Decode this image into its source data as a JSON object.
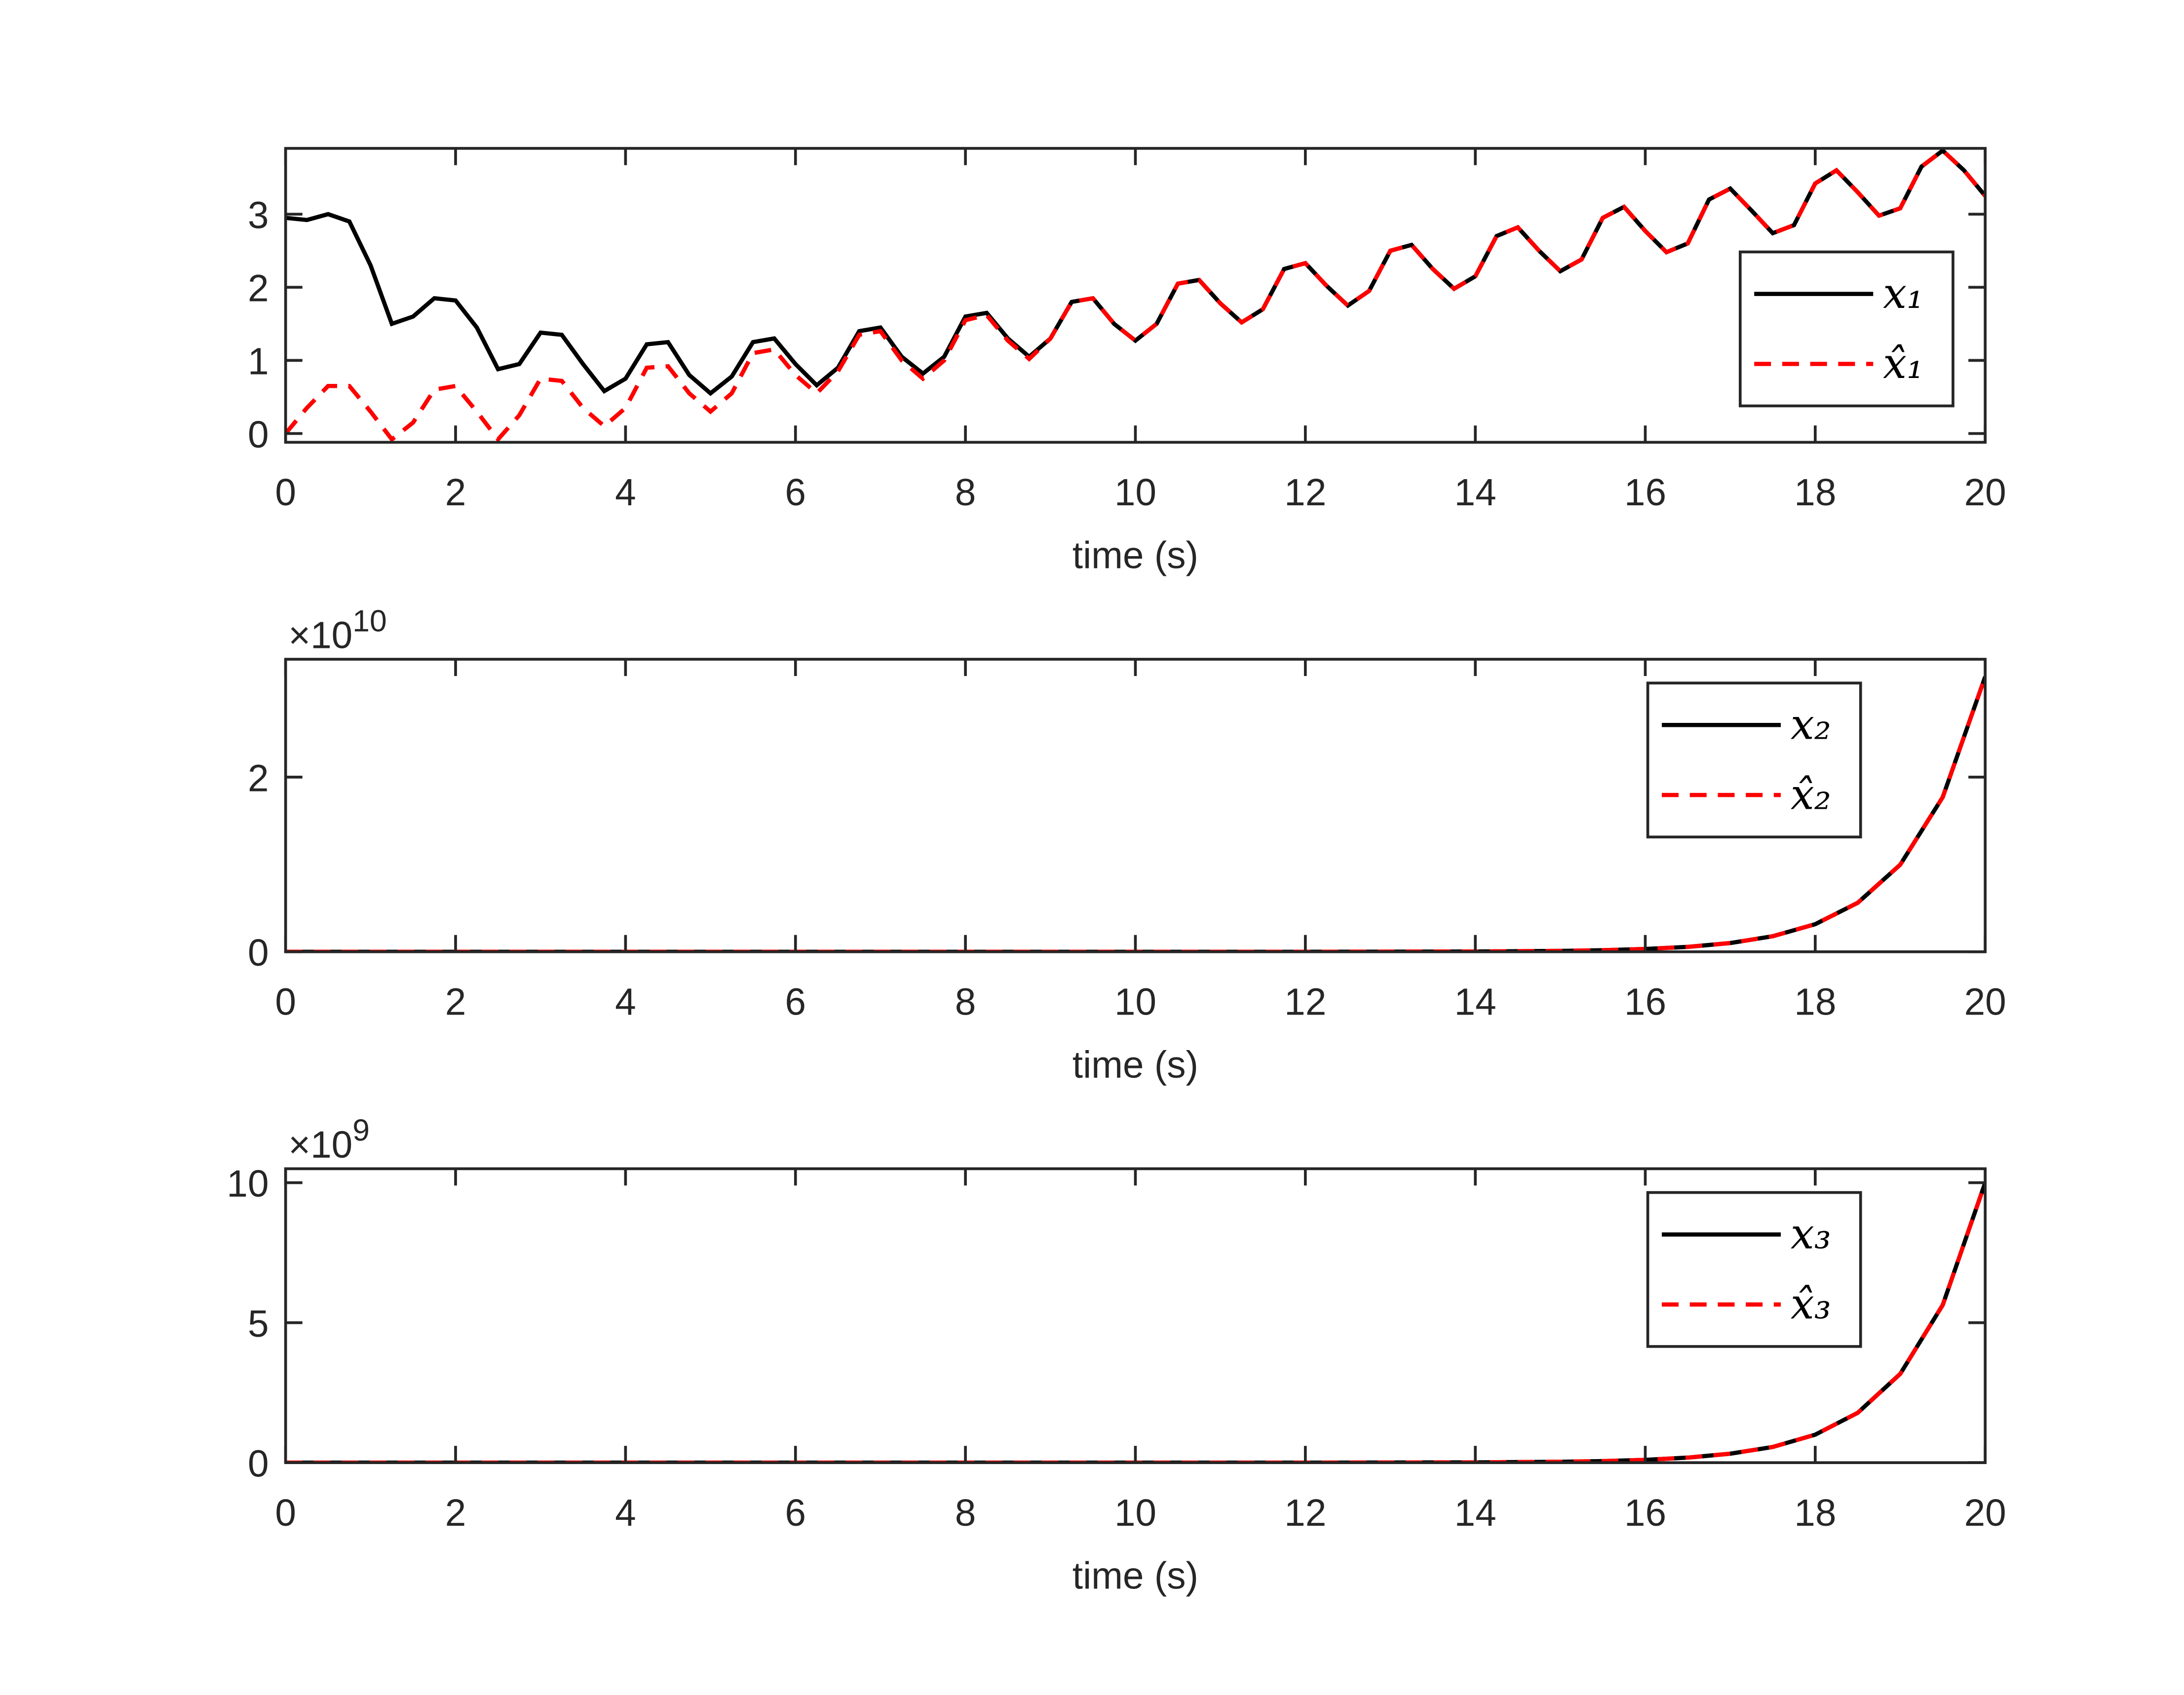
{
  "chart_data": [
    {
      "type": "line",
      "x_label": "time (s)",
      "xlim": [
        0,
        20
      ],
      "xticks": [
        0,
        2,
        4,
        6,
        8,
        10,
        12,
        14,
        16,
        18,
        20
      ],
      "ylim": [
        -0.12,
        3.9
      ],
      "yticks": [
        0,
        1,
        2,
        3
      ],
      "legend_loc": "southeast",
      "x": [
        0,
        0.25,
        0.5,
        0.75,
        1,
        1.25,
        1.5,
        1.75,
        2,
        2.25,
        2.5,
        2.75,
        3,
        3.25,
        3.5,
        3.75,
        4,
        4.25,
        4.5,
        4.75,
        5,
        5.25,
        5.5,
        5.75,
        6,
        6.25,
        6.5,
        6.75,
        7,
        7.25,
        7.5,
        7.75,
        8,
        8.25,
        8.5,
        8.75,
        9,
        9.25,
        9.5,
        9.75,
        10,
        10.25,
        10.5,
        10.75,
        11,
        11.25,
        11.5,
        11.75,
        12,
        12.25,
        12.5,
        12.75,
        13,
        13.25,
        13.5,
        13.75,
        14,
        14.25,
        14.5,
        14.75,
        15,
        15.25,
        15.5,
        15.75,
        16,
        16.25,
        16.5,
        16.75,
        17,
        17.25,
        17.5,
        17.75,
        18,
        18.25,
        18.5,
        18.75,
        19,
        19.25,
        19.5,
        19.75,
        20
      ],
      "series": [
        {
          "name": "x₁",
          "color": "#000000",
          "line_style": "solid",
          "values": [
            2.95,
            2.92,
            3.0,
            2.9,
            2.3,
            1.5,
            1.6,
            1.85,
            1.82,
            1.45,
            0.88,
            0.95,
            1.38,
            1.35,
            0.95,
            0.58,
            0.75,
            1.22,
            1.25,
            0.8,
            0.55,
            0.78,
            1.25,
            1.3,
            0.95,
            0.66,
            0.9,
            1.4,
            1.45,
            1.05,
            0.82,
            1.05,
            1.6,
            1.65,
            1.3,
            1.05,
            1.3,
            1.8,
            1.85,
            1.5,
            1.27,
            1.5,
            2.05,
            2.1,
            1.78,
            1.52,
            1.7,
            2.25,
            2.33,
            2.02,
            1.75,
            1.95,
            2.5,
            2.58,
            2.25,
            1.98,
            2.15,
            2.7,
            2.82,
            2.5,
            2.22,
            2.38,
            2.95,
            3.1,
            2.77,
            2.48,
            2.6,
            3.2,
            3.35,
            3.05,
            2.74,
            2.85,
            3.42,
            3.6,
            3.3,
            2.98,
            3.08,
            3.65,
            3.87,
            3.6,
            3.25
          ]
        },
        {
          "name": "x̂₁",
          "color": "#ff0000",
          "line_style": "dashed",
          "values": [
            0,
            0.35,
            0.65,
            0.65,
            0.3,
            -0.08,
            0.15,
            0.6,
            0.65,
            0.3,
            -0.08,
            0.25,
            0.75,
            0.72,
            0.35,
            0.1,
            0.35,
            0.9,
            0.92,
            0.55,
            0.3,
            0.55,
            1.1,
            1.15,
            0.8,
            0.55,
            0.85,
            1.35,
            1.4,
            1.0,
            0.75,
            1.0,
            1.55,
            1.62,
            1.27,
            1.02,
            1.3,
            1.8,
            1.85,
            1.5,
            1.27,
            1.5,
            2.05,
            2.1,
            1.78,
            1.52,
            1.7,
            2.25,
            2.33,
            2.02,
            1.75,
            1.95,
            2.5,
            2.58,
            2.25,
            1.98,
            2.15,
            2.7,
            2.82,
            2.5,
            2.22,
            2.38,
            2.95,
            3.1,
            2.77,
            2.48,
            2.6,
            3.2,
            3.35,
            3.05,
            2.74,
            2.85,
            3.42,
            3.6,
            3.3,
            2.98,
            3.08,
            3.65,
            3.87,
            3.6,
            3.25
          ]
        }
      ]
    },
    {
      "type": "line",
      "x_label": "time (s)",
      "xlim": [
        0,
        20
      ],
      "xticks": [
        0,
        2,
        4,
        6,
        8,
        10,
        12,
        14,
        16,
        18,
        20
      ],
      "ylim": [
        0,
        33500000000
      ],
      "yticks": [
        0,
        {
          "value": 20000000000,
          "label": "2"
        }
      ],
      "legend_loc": "northeast",
      "y_multiplier": {
        "base": "×10",
        "exponent": "10"
      },
      "x": [
        0,
        2,
        4,
        6,
        8,
        10,
        12,
        14,
        15,
        15.5,
        16,
        16.5,
        17,
        17.5,
        18,
        18.5,
        19,
        19.5,
        20
      ],
      "series": [
        {
          "name": "x₂",
          "color": "#000000",
          "line_style": "solid",
          "values": [
            0,
            0,
            0,
            0,
            0,
            0,
            0,
            32000000,
            100000000,
            180000000,
            320000000,
            560000000,
            1000000000,
            1780000000,
            3160000000,
            5610000000,
            9970000000,
            17700000000,
            31500000000
          ]
        },
        {
          "name": "x̂₂",
          "color": "#ff0000",
          "line_style": "dashed",
          "values": [
            0,
            0,
            0,
            0,
            0,
            0,
            0,
            32000000,
            100000000,
            180000000,
            320000000,
            560000000,
            1000000000,
            1780000000,
            3160000000,
            5610000000,
            9970000000,
            17700000000,
            31500000000
          ]
        }
      ]
    },
    {
      "type": "line",
      "x_label": "time (s)",
      "xlim": [
        0,
        20
      ],
      "xticks": [
        0,
        2,
        4,
        6,
        8,
        10,
        12,
        14,
        16,
        18,
        20
      ],
      "ylim": [
        0,
        10500000000
      ],
      "yticks": [
        0,
        {
          "value": 5000000000,
          "label": "5"
        },
        {
          "value": 10000000000,
          "label": "10"
        }
      ],
      "legend_loc": "northeast",
      "y_multiplier": {
        "base": "×10",
        "exponent": "9"
      },
      "x": [
        0,
        2,
        4,
        6,
        8,
        10,
        12,
        14,
        15,
        15.5,
        16,
        16.5,
        17,
        17.5,
        18,
        18.5,
        19,
        19.5,
        20
      ],
      "series": [
        {
          "name": "x₃",
          "color": "#000000",
          "line_style": "solid",
          "values": [
            0,
            0,
            0,
            0,
            0,
            0,
            0,
            10000000,
            32000000,
            56000000,
            100000000,
            180000000,
            320000000,
            560000000,
            1000000000,
            1780000000,
            3170000000,
            5630000000,
            10000000000
          ]
        },
        {
          "name": "x̂₃",
          "color": "#ff0000",
          "line_style": "dashed",
          "values": [
            0,
            0,
            0,
            0,
            0,
            0,
            0,
            10000000,
            32000000,
            56000000,
            100000000,
            180000000,
            320000000,
            560000000,
            1000000000,
            1780000000,
            3170000000,
            5630000000,
            10000000000
          ]
        }
      ]
    }
  ]
}
